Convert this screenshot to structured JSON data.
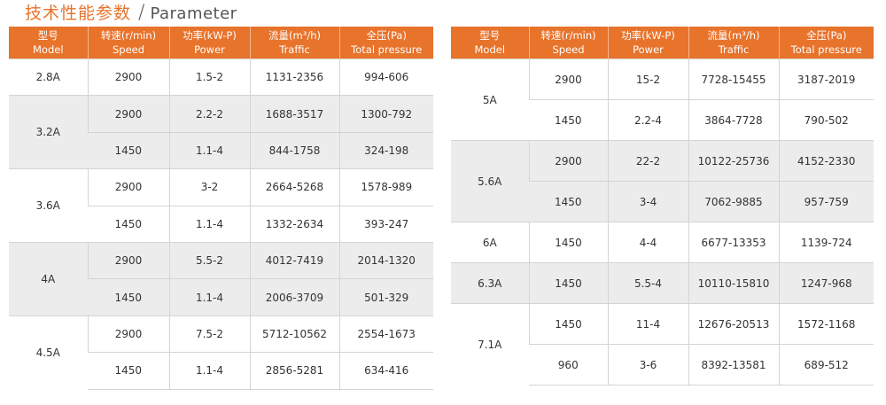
{
  "header": {
    "title_cn": "技术性能参数",
    "slash": "/",
    "title_en": "Parameter"
  },
  "columns": [
    {
      "cn": "型号",
      "en": "Model"
    },
    {
      "cn": "转速(r/min)",
      "en": "Speed"
    },
    {
      "cn": "功率(kW-P)",
      "en": "Power"
    },
    {
      "cn": "流量(m³/h)",
      "en": "Traffic"
    },
    {
      "cn": "全压(Pa)",
      "en": "Total pressure"
    }
  ],
  "colors": {
    "accent": "#e8732b",
    "stripe": "#ececec",
    "border": "#d4d4d4"
  },
  "left_table": [
    {
      "model": "2.8A",
      "rows": [
        {
          "speed": "2900",
          "power": "1.5-2",
          "traffic": "1131-2356",
          "pressure": "994-606"
        }
      ]
    },
    {
      "model": "3.2A",
      "rows": [
        {
          "speed": "2900",
          "power": "2.2-2",
          "traffic": "1688-3517",
          "pressure": "1300-792"
        },
        {
          "speed": "1450",
          "power": "1.1-4",
          "traffic": "844-1758",
          "pressure": "324-198"
        }
      ]
    },
    {
      "model": "3.6A",
      "rows": [
        {
          "speed": "2900",
          "power": "3-2",
          "traffic": "2664-5268",
          "pressure": "1578-989"
        },
        {
          "speed": "1450",
          "power": "1.1-4",
          "traffic": "1332-2634",
          "pressure": "393-247"
        }
      ]
    },
    {
      "model": "4A",
      "rows": [
        {
          "speed": "2900",
          "power": "5.5-2",
          "traffic": "4012-7419",
          "pressure": "2014-1320"
        },
        {
          "speed": "1450",
          "power": "1.1-4",
          "traffic": "2006-3709",
          "pressure": "501-329"
        }
      ]
    },
    {
      "model": "4.5A",
      "rows": [
        {
          "speed": "2900",
          "power": "7.5-2",
          "traffic": "5712-10562",
          "pressure": "2554-1673"
        },
        {
          "speed": "1450",
          "power": "1.1-4",
          "traffic": "2856-5281",
          "pressure": "634-416"
        }
      ]
    }
  ],
  "right_table": [
    {
      "model": "5A",
      "rows": [
        {
          "speed": "2900",
          "power": "15-2",
          "traffic": "7728-15455",
          "pressure": "3187-2019"
        },
        {
          "speed": "1450",
          "power": "2.2-4",
          "traffic": "3864-7728",
          "pressure": "790-502"
        }
      ]
    },
    {
      "model": "5.6A",
      "rows": [
        {
          "speed": "2900",
          "power": "22-2",
          "traffic": "10122-25736",
          "pressure": "4152-2330"
        },
        {
          "speed": "1450",
          "power": "3-4",
          "traffic": "7062-9885",
          "pressure": "957-759"
        }
      ]
    },
    {
      "model": "6A",
      "rows": [
        {
          "speed": "1450",
          "power": "4-4",
          "traffic": "6677-13353",
          "pressure": "1139-724"
        }
      ]
    },
    {
      "model": "6.3A",
      "rows": [
        {
          "speed": "1450",
          "power": "5.5-4",
          "traffic": "10110-15810",
          "pressure": "1247-968"
        }
      ]
    },
    {
      "model": "7.1A",
      "rows": [
        {
          "speed": "1450",
          "power": "11-4",
          "traffic": "12676-20513",
          "pressure": "1572-1168"
        },
        {
          "speed": "960",
          "power": "3-6",
          "traffic": "8392-13581",
          "pressure": "689-512"
        }
      ]
    }
  ]
}
